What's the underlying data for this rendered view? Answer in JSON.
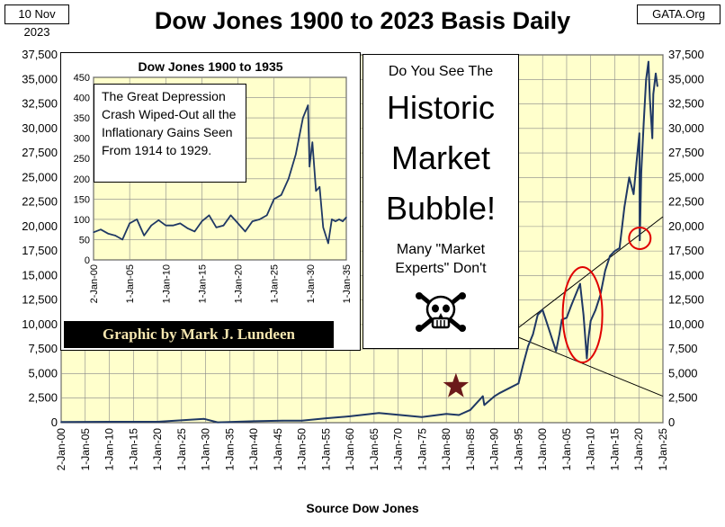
{
  "header": {
    "date": "10 Nov 2023",
    "title": "Dow Jones 1900 to 2023 Basis Daily",
    "source": "GATA.Org"
  },
  "chart_data": [
    {
      "type": "line",
      "title": "Dow Jones 1900 to 2023 Basis Daily",
      "xlabel": "Source Dow Jones",
      "ylabel": "",
      "xlim": [
        1900,
        2025
      ],
      "ylim": [
        0,
        37500
      ],
      "grid": true,
      "y_ticks": [
        "0",
        "2,500",
        "5,000",
        "7,500",
        "10,000",
        "12,500",
        "15,000",
        "17,500",
        "20,000",
        "22,500",
        "25,000",
        "27,500",
        "30,000",
        "32,500",
        "35,000",
        "37,500"
      ],
      "x_ticks": [
        "2-Jan-00",
        "1-Jan-05",
        "1-Jan-10",
        "1-Jan-15",
        "1-Jan-20",
        "1-Jan-25",
        "1-Jan-30",
        "1-Jan-35",
        "1-Jan-40",
        "1-Jan-45",
        "1-Jan-50",
        "1-Jan-55",
        "1-Jan-60",
        "1-Jan-65",
        "1-Jan-70",
        "1-Jan-75",
        "1-Jan-80",
        "1-Jan-85",
        "1-Jan-90",
        "1-Jan-95",
        "1-Jan-00",
        "1-Jan-05",
        "1-Jan-10",
        "1-Jan-15",
        "1-Jan-20",
        "1-Jan-25"
      ],
      "series": [
        {
          "color": "#1f3864",
          "x": [
            1900,
            1910,
            1920,
            1929.7,
            1932.5,
            1940,
            1946,
            1950,
            1955,
            1960,
            1966,
            1970,
            1974.9,
            1980,
            1982.6,
            1985,
            1987.6,
            1987.9,
            1990,
            1991,
            1993,
            1995,
            1996,
            1997,
            1998,
            1999,
            2000,
            2001,
            2002.8,
            2003.5,
            2004,
            2005,
            2006,
            2007.8,
            2008.5,
            2009.2,
            2009.5,
            2010,
            2011,
            2012,
            2013,
            2014,
            2015,
            2016,
            2017,
            2018,
            2018.9,
            2019.5,
            2020.1,
            2020.2,
            2020.5,
            2021,
            2021.5,
            2022,
            2022.3,
            2022.8,
            2023,
            2023.5,
            2023.86
          ],
          "values": [
            70,
            95,
            90,
            381,
            41,
            150,
            200,
            200,
            450,
            650,
            990,
            800,
            580,
            900,
            780,
            1300,
            2700,
            1800,
            2700,
            3000,
            3500,
            4000,
            6000,
            7800,
            9000,
            11000,
            11500,
            10000,
            7300,
            9000,
            10500,
            10700,
            12000,
            14160,
            11000,
            6550,
            8500,
            10400,
            11500,
            13000,
            15500,
            17000,
            17500,
            17800,
            22000,
            25000,
            23300,
            26500,
            29500,
            18600,
            25500,
            30500,
            35000,
            36800,
            33000,
            29000,
            33500,
            35600,
            34300
          ]
        }
      ],
      "markers": [
        {
          "type": "star",
          "x": 1982,
          "y": 3700,
          "color": "#6b1a1a"
        },
        {
          "type": "ellipse",
          "cx": 2008.3,
          "cy": 11000,
          "color": "#e00000"
        },
        {
          "type": "circle",
          "cx": 2020.2,
          "cy": 18800,
          "color": "#e00000"
        }
      ],
      "trend_lines": [
        {
          "from": [
            1994.5,
            9500
          ],
          "to": [
            2025,
            21000
          ]
        },
        {
          "from": [
            1994.5,
            8800
          ],
          "to": [
            2025,
            2700
          ]
        }
      ]
    },
    {
      "type": "line",
      "title": "Dow Jones 1900 to 1935",
      "xlim": [
        1900,
        1935
      ],
      "ylim": [
        0,
        450
      ],
      "grid": true,
      "y_ticks": [
        "0",
        "50",
        "100",
        "150",
        "200",
        "250",
        "300",
        "350",
        "400",
        "450"
      ],
      "x_ticks": [
        "2-Jan-00",
        "1-Jan-05",
        "1-Jan-10",
        "1-Jan-15",
        "1-Jan-20",
        "1-Jan-25",
        "1-Jan-30",
        "1-Jan-35"
      ],
      "series": [
        {
          "color": "#1f3864",
          "x": [
            1900,
            1901,
            1902,
            1903,
            1904,
            1905,
            1906,
            1907,
            1908,
            1909,
            1910,
            1911,
            1912,
            1913,
            1914,
            1915,
            1916,
            1917,
            1918,
            1919,
            1920,
            1921,
            1922,
            1923,
            1924,
            1925,
            1926,
            1927,
            1928,
            1929,
            1929.7,
            1929.9,
            1930.3,
            1930.8,
            1931.3,
            1931.8,
            1932.5,
            1933,
            1933.5,
            1934,
            1934.5,
            1935
          ],
          "values": [
            68,
            75,
            65,
            60,
            50,
            90,
            100,
            60,
            85,
            98,
            85,
            85,
            90,
            78,
            70,
            95,
            110,
            80,
            85,
            110,
            90,
            70,
            95,
            100,
            110,
            150,
            160,
            200,
            260,
            350,
            381,
            230,
            290,
            170,
            180,
            80,
            41,
            100,
            95,
            100,
            95,
            105
          ]
        }
      ]
    }
  ],
  "inset": {
    "callout": "The Great Depression Crash Wiped-Out all the Inflationary Gains Seen From 1914 to 1929.",
    "credit": "Graphic by Mark J. Lundeen"
  },
  "bubble": {
    "line1": "Do You See The",
    "line2": "Historic",
    "line3": "Market",
    "line4": "Bubble!",
    "line5": "Many \"Market",
    "line6": "Experts\"  Don't"
  },
  "x_axis_title": "Source Dow Jones",
  "colors": {
    "plot_bg": "#ffffcc",
    "grid": "#888888",
    "line": "#1f3864",
    "star": "#6b1a1a",
    "circle": "#e00000"
  },
  "icons": {
    "skull": "skull-crossbones-icon"
  }
}
